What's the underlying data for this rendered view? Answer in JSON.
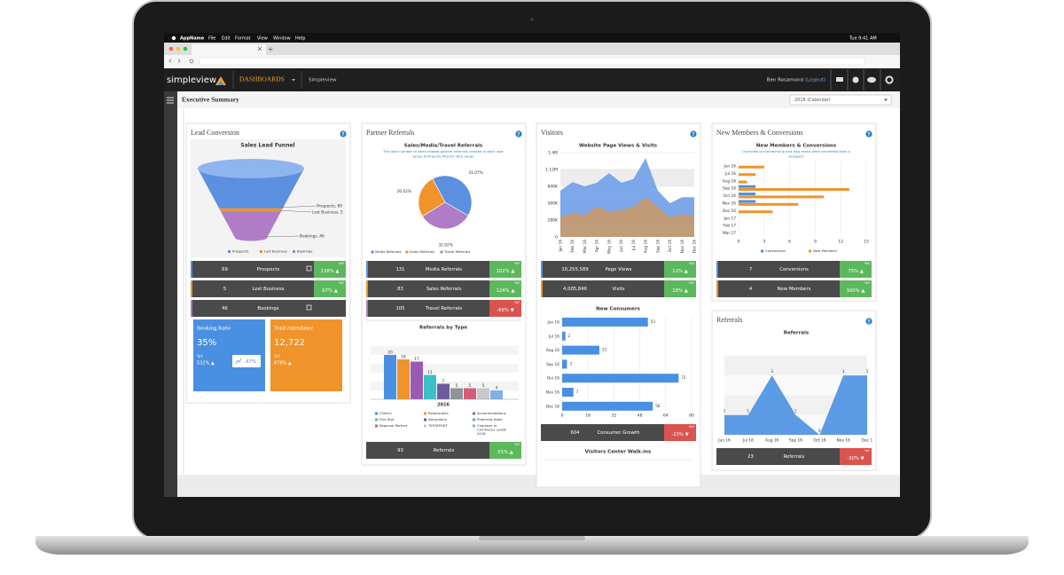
{
  "menu_bar": {
    "items": [
      "AppName",
      "File",
      "Edit",
      "Format",
      "View",
      "Window",
      "Help"
    ],
    "clock": "Tue 9:41 AM"
  },
  "app_header": {
    "logo": "simpleview",
    "nav": "DASHBOARDS",
    "site": "Simpleview",
    "user": "Ben Rosamond",
    "logout": "(Logout)"
  },
  "page": {
    "title": "Executive Summary",
    "period": "2016 (Calendar)"
  },
  "labels": {
    "yoy": "YoY",
    "help": "?"
  },
  "lead_conversion": {
    "title": "Lead Conversion",
    "funnel": {
      "type": "funnel",
      "title": "Sales Lead Funnel",
      "categories": [
        "Prospects",
        "Lost Business",
        "Bookings"
      ],
      "values": [
        69,
        5,
        46
      ],
      "value_labels": [
        "Prospects, 69",
        "Lost Business, 5",
        "Bookings, 46"
      ],
      "colors": [
        "#5b8fe0",
        "#f0932b",
        "#b07cc6"
      ]
    },
    "stats": [
      {
        "value": "69",
        "label": "Prospects",
        "yoy": "138% ▲",
        "yoy_color": "#5cb85c",
        "accent": "#5b8fe0"
      },
      {
        "value": "5",
        "label": "Lost Business",
        "yoy": "67% ▲",
        "yoy_color": "#5cb85c",
        "accent": "#f0932b"
      },
      {
        "value": "46",
        "label": "Bookings",
        "accent": "#b07cc6"
      }
    ],
    "booking_ratio": {
      "title": "Booking Ratio",
      "value": "35%",
      "yoy": "532% ▲",
      "badge": "47%",
      "color": "#4a90e2"
    },
    "total_attendance": {
      "title": "Total Attendance",
      "value": "12,722",
      "yoy": "678% ▲",
      "color": "#f0932b"
    }
  },
  "partner_referrals": {
    "title": "Partner Referrals",
    "pie": {
      "type": "pie",
      "title": "Sales/Media/Travel Referrals",
      "subtitle": [
        "The total number of sales related partner referrals created in each user",
        "group during the filtered date range"
      ],
      "categories": [
        "Media Referrals",
        "Sales Referrals",
        "Travel Referrals"
      ],
      "values": [
        41.07,
        26.02,
        32.92
      ],
      "value_labels": [
        "41.07%",
        "26.02%",
        "32.92%"
      ],
      "colors": [
        "#5b8fe0",
        "#f0932b",
        "#b07cc6"
      ]
    },
    "stats": [
      {
        "value": "131",
        "label": "Media Referrals",
        "yoy": "102% ▲",
        "yoy_color": "#5cb85c",
        "accent": "#5b8fe0"
      },
      {
        "value": "83",
        "label": "Sales Referrals",
        "yoy": "124% ▲",
        "yoy_color": "#5cb85c",
        "accent": "#f0932b"
      },
      {
        "value": "105",
        "label": "Travel Referrals",
        "yoy": "-66% ▼",
        "yoy_color": "#d9534f",
        "accent": "#b07cc6"
      }
    ],
    "by_type": {
      "type": "bar",
      "title": "Referrals by Type",
      "x_label": "2016",
      "categories": [
        "(Other)",
        "Restaurants",
        "Accommodations",
        "Five Star",
        "Attractions",
        "Preferred Hotel",
        "Regional Partner",
        "TESTAPORT",
        "Chamber or Commerce Leads 2016"
      ],
      "values": [
        20,
        18,
        17,
        11,
        7,
        5,
        5,
        5,
        4
      ],
      "colors": [
        "#4a90e2",
        "#f0932b",
        "#9b59b6",
        "#3cc0c8",
        "#6c5b9e",
        "#8e949a",
        "#d45d79",
        "#c9c9c9",
        "#7fb3e6"
      ]
    },
    "total": {
      "value": "93",
      "label": "Referrals",
      "yoy": "55% ▲",
      "yoy_color": "#5cb85c",
      "accent": "#4a4a4a"
    }
  },
  "visitors": {
    "title": "Visitors",
    "page_views_chart": {
      "type": "area",
      "title": "Website Page Views & Visits",
      "categories": [
        "Jan 16",
        "Feb 16",
        "Mar 16",
        "Apr 16",
        "May 16",
        "Jun 16",
        "Jul 16",
        "Aug 16",
        "Sep 16",
        "Oct 16",
        "Nov 16",
        "Dec 16"
      ],
      "series": [
        {
          "color": "#6f9fe8",
          "values": [
            770000,
            910000,
            840000,
            900000,
            1060000,
            900000,
            960000,
            1310000,
            770000,
            560000,
            660000,
            660000
          ]
        },
        {
          "color": "#c99a6b",
          "values": [
            330000,
            400000,
            360000,
            510000,
            420000,
            450000,
            500000,
            660000,
            500000,
            330000,
            380000,
            350000
          ]
        }
      ],
      "ylim": [
        0,
        1400000
      ],
      "yticks": [
        0,
        {
          "value": 280000,
          "label": "280K"
        },
        {
          "value": 560000,
          "label": "560K"
        },
        {
          "value": 840000,
          "label": "840K"
        },
        {
          "value": 1120000,
          "label": "1.12M"
        },
        {
          "value": 1400000,
          "label": "1.4M"
        }
      ]
    },
    "stats": [
      {
        "value": "10,255,589",
        "label": "Page Views",
        "yoy": "11% ▲",
        "yoy_color": "#5cb85c",
        "accent": "#5b8fe0"
      },
      {
        "value": "4,005,846",
        "label": "Visits",
        "yoy": "18% ▲",
        "yoy_color": "#5cb85c",
        "accent": "#f0932b"
      }
    ],
    "new_consumers": {
      "type": "hbar",
      "title": "New Consumers",
      "categories": [
        "Jun 16",
        "Jul 16",
        "Aug 16",
        "Sep 16",
        "Oct 16",
        "Nov 16",
        "Dec 16"
      ],
      "values": [
        53,
        2,
        23,
        3,
        72,
        7,
        56
      ],
      "color": "#4a90e2",
      "xlim": [
        0,
        80
      ],
      "xticks": [
        0,
        16,
        32,
        48,
        64,
        80
      ]
    },
    "growth": {
      "value": "604",
      "label": "Consumer Growth",
      "yoy": "-23% ▼",
      "yoy_color": "#d9534f",
      "accent": "#4a4a4a"
    },
    "walk_ins": {
      "title": "Visitors Center Walk-ins"
    }
  },
  "members": {
    "title": "New Members & Conversions",
    "chart": {
      "type": "hbar",
      "title": "New Members & Conversions",
      "subtitle": [
        "Overview of membership and how many were converted from a",
        "prospect"
      ],
      "categories": [
        "Jun 16",
        "Jul 16",
        "Aug 16",
        "Sep 16",
        "Oct 16",
        "Nov 16",
        "Dec 16",
        "Jan 17",
        "Feb 17",
        "Mar 17"
      ],
      "series": [
        {
          "name": "Conversions",
          "color": "#4a90e2",
          "values": [
            0,
            0,
            0,
            2,
            2,
            2,
            0,
            0,
            0,
            0
          ]
        },
        {
          "name": "New Members",
          "color": "#f0932b",
          "values": [
            3,
            2,
            1,
            13,
            10,
            7,
            4,
            0,
            0,
            0
          ]
        }
      ],
      "xlim": [
        0,
        15
      ],
      "xticks": [
        0,
        3,
        6,
        9,
        12,
        15
      ]
    },
    "stats": [
      {
        "value": "7",
        "label": "Conversions",
        "yoy": "75% ▲",
        "yoy_color": "#5cb85c",
        "accent": "#4a90e2"
      },
      {
        "value": "4",
        "label": "New Members",
        "yoy": "300% ▲",
        "yoy_color": "#5cb85c",
        "accent": "#f0932b"
      }
    ]
  },
  "referrals": {
    "title": "Referrals",
    "chart": {
      "type": "area",
      "title": "Referrals",
      "categories": [
        "Jun 16",
        "Jul 16",
        "Aug 16",
        "Sep 16",
        "Oct 16",
        "Nov 16",
        "Dec 1"
      ],
      "values": [
        1,
        1,
        3,
        1,
        0,
        3,
        3
      ],
      "color": "#4a90e2",
      "ylim": [
        0,
        3.5
      ]
    },
    "total": {
      "value": "23",
      "label": "Referrals",
      "yoy": "-30% ▼",
      "yoy_color": "#d9534f",
      "accent": "#4a4a4a"
    }
  }
}
